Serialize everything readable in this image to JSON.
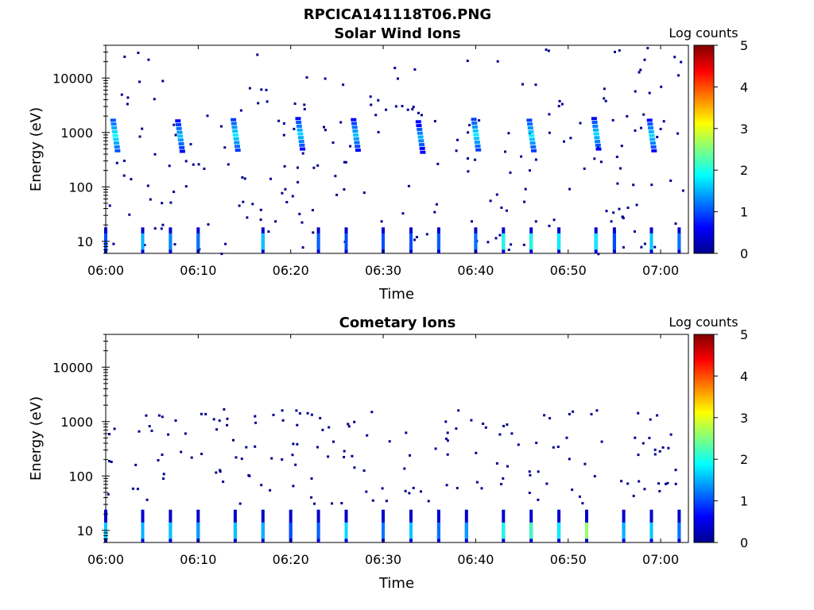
{
  "figure_title": "RPCICA141118T06.PNG",
  "chart_data": [
    {
      "type": "heatmap",
      "title": "Solar Wind Ions",
      "xlabel": "Time",
      "ylabel": "Energy (eV)",
      "y_scale": "log",
      "xlim": [
        "06:00",
        "07:03"
      ],
      "ylim": [
        6,
        40000
      ],
      "x_ticks": [
        "06:00",
        "06:10",
        "06:20",
        "06:30",
        "06:40",
        "06:50",
        "07:00"
      ],
      "y_ticks": [
        "10",
        "100",
        "1000",
        "10000"
      ],
      "colorbar": {
        "label": "Log counts",
        "range": [
          0,
          5
        ],
        "ticks": [
          "0",
          "1",
          "2",
          "3",
          "4",
          "5"
        ],
        "colormap": "jet"
      },
      "solar_wind_beams": [
        {
          "t": "06:01",
          "energy": 800,
          "log_counts": 1.9
        },
        {
          "t": "06:08",
          "energy": 780,
          "log_counts": 1.6
        },
        {
          "t": "06:14",
          "energy": 820,
          "log_counts": 1.8
        },
        {
          "t": "06:21",
          "energy": 860,
          "log_counts": 1.7
        },
        {
          "t": "06:27",
          "energy": 820,
          "log_counts": 1.6
        },
        {
          "t": "06:34",
          "energy": 750,
          "log_counts": 1.5
        },
        {
          "t": "06:40",
          "energy": 830,
          "log_counts": 1.8
        },
        {
          "t": "06:46",
          "energy": 800,
          "log_counts": 1.8
        },
        {
          "t": "06:53",
          "energy": 860,
          "log_counts": 1.7
        },
        {
          "t": "06:59",
          "energy": 800,
          "log_counts": 1.7
        }
      ],
      "low_energy_columns": [
        {
          "t": "06:00",
          "log_counts": 1.0
        },
        {
          "t": "06:04",
          "log_counts": 1.5
        },
        {
          "t": "06:07",
          "log_counts": 1.3
        },
        {
          "t": "06:10",
          "log_counts": 1.2
        },
        {
          "t": "06:17",
          "log_counts": 1.6
        },
        {
          "t": "06:23",
          "log_counts": 1.1
        },
        {
          "t": "06:26",
          "log_counts": 1.0
        },
        {
          "t": "06:30",
          "log_counts": 1.0
        },
        {
          "t": "06:33",
          "log_counts": 1.0
        },
        {
          "t": "06:36",
          "log_counts": 1.1
        },
        {
          "t": "06:40",
          "log_counts": 1.2
        },
        {
          "t": "06:43",
          "log_counts": 2.0
        },
        {
          "t": "06:46",
          "log_counts": 2.0
        },
        {
          "t": "06:49",
          "log_counts": 1.8
        },
        {
          "t": "06:53",
          "log_counts": 1.8
        },
        {
          "t": "06:55",
          "log_counts": 1.0
        },
        {
          "t": "06:59",
          "log_counts": 1.6
        },
        {
          "t": "07:02",
          "log_counts": 1.2
        }
      ]
    },
    {
      "type": "heatmap",
      "title": "Cometary Ions",
      "xlabel": "Time",
      "ylabel": "Energy (eV)",
      "y_scale": "log",
      "xlim": [
        "06:00",
        "07:03"
      ],
      "ylim": [
        6,
        40000
      ],
      "x_ticks": [
        "06:00",
        "06:10",
        "06:20",
        "06:30",
        "06:40",
        "06:50",
        "07:00"
      ],
      "y_ticks": [
        "10",
        "100",
        "1000",
        "10000"
      ],
      "colorbar": {
        "label": "Log counts",
        "range": [
          0,
          5
        ],
        "ticks": [
          "0",
          "1",
          "2",
          "3",
          "4",
          "5"
        ],
        "colormap": "jet"
      },
      "low_energy_columns": [
        {
          "t": "06:00",
          "log_counts": 1.6
        },
        {
          "t": "06:04",
          "log_counts": 1.5
        },
        {
          "t": "06:07",
          "log_counts": 1.6
        },
        {
          "t": "06:10",
          "log_counts": 1.4
        },
        {
          "t": "06:14",
          "log_counts": 1.6
        },
        {
          "t": "06:17",
          "log_counts": 1.5
        },
        {
          "t": "06:20",
          "log_counts": 1.0
        },
        {
          "t": "06:23",
          "log_counts": 1.1
        },
        {
          "t": "06:26",
          "log_counts": 1.7
        },
        {
          "t": "06:30",
          "log_counts": 1.2
        },
        {
          "t": "06:33",
          "log_counts": 1.6
        },
        {
          "t": "06:36",
          "log_counts": 1.2
        },
        {
          "t": "06:39",
          "log_counts": 1.4
        },
        {
          "t": "06:43",
          "log_counts": 2.0
        },
        {
          "t": "06:46",
          "log_counts": 2.2
        },
        {
          "t": "06:49",
          "log_counts": 1.8
        },
        {
          "t": "06:52",
          "log_counts": 2.6
        },
        {
          "t": "06:56",
          "log_counts": 1.5
        },
        {
          "t": "06:59",
          "log_counts": 1.6
        },
        {
          "t": "07:02",
          "log_counts": 1.2
        }
      ]
    }
  ]
}
